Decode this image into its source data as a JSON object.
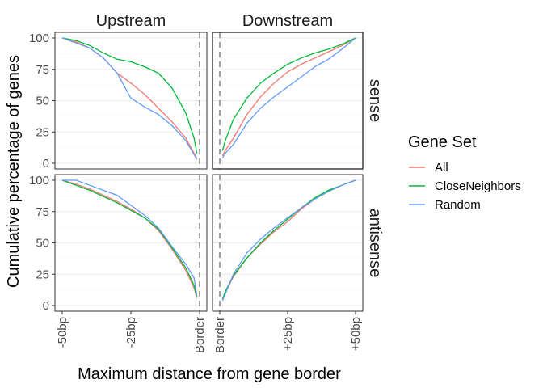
{
  "chart_data": {
    "type": "line",
    "title": "",
    "xlabel": "Maximum distance from gene border",
    "ylabel": "Cumulative percentage of genes",
    "ylim": [
      0,
      100
    ],
    "y_ticks": [
      0,
      25,
      50,
      75,
      100
    ],
    "grid": true,
    "legend": {
      "title": "Gene Set",
      "position": "right",
      "entries": [
        "All",
        "CloseNeighbors",
        "Random"
      ]
    },
    "colors": {
      "All": "#F8766D",
      "CloseNeighbors": "#00BA38",
      "Random": "#619CFF",
      "border_line": "#a0a0a0",
      "panel_border": "#333333",
      "grid": "#ebebeb"
    },
    "columns": [
      {
        "label": "Upstream",
        "x_ticks": [
          "-50bp",
          "-25bp",
          "Border"
        ],
        "xlim": [
          -50,
          0
        ]
      },
      {
        "label": "Downstream",
        "x_ticks": [
          "Border",
          "+25bp",
          "+50bp"
        ],
        "xlim": [
          0,
          50
        ]
      }
    ],
    "rows": [
      "sense",
      "antisense"
    ],
    "panels": [
      {
        "column": "Upstream",
        "row": "sense",
        "series": [
          {
            "name": "All",
            "x": [
              -50,
              -45,
              -40,
              -35,
              -30,
              -25,
              -20,
              -15,
              -10,
              -5,
              -2,
              -1
            ],
            "y": [
              100,
              97,
              92,
              84,
              72,
              64,
              55,
              44,
              33,
              20,
              8,
              4
            ]
          },
          {
            "name": "CloseNeighbors",
            "x": [
              -50,
              -45,
              -40,
              -35,
              -30,
              -25,
              -20,
              -15,
              -10,
              -5,
              -2,
              -1
            ],
            "y": [
              100,
              98,
              94,
              88,
              83,
              81,
              77,
              72,
              60,
              40,
              20,
              8
            ]
          },
          {
            "name": "Random",
            "x": [
              -50,
              -45,
              -40,
              -35,
              -30,
              -25,
              -20,
              -15,
              -10,
              -5,
              -2,
              -1
            ],
            "y": [
              100,
              96,
              92,
              84,
              72,
              52,
              45,
              39,
              30,
              18,
              7,
              3
            ]
          }
        ]
      },
      {
        "column": "Downstream",
        "row": "sense",
        "series": [
          {
            "name": "All",
            "x": [
              1,
              2,
              5,
              10,
              15,
              20,
              25,
              30,
              35,
              40,
              45,
              50
            ],
            "y": [
              6,
              10,
              20,
              39,
              53,
              64,
              73,
              79,
              84,
              89,
              94,
              100
            ]
          },
          {
            "name": "CloseNeighbors",
            "x": [
              1,
              2,
              5,
              10,
              15,
              20,
              25,
              30,
              35,
              40,
              45,
              50
            ],
            "y": [
              10,
              18,
              35,
              52,
              64,
              72,
              79,
              84,
              88,
              91,
              95,
              100
            ]
          },
          {
            "name": "Random",
            "x": [
              1,
              2,
              5,
              10,
              15,
              20,
              25,
              30,
              35,
              40,
              45,
              50
            ],
            "y": [
              4,
              8,
              15,
              32,
              44,
              53,
              61,
              69,
              77,
              83,
              91,
              100
            ]
          }
        ]
      },
      {
        "column": "Upstream",
        "row": "antisense",
        "series": [
          {
            "name": "All",
            "x": [
              -50,
              -45,
              -40,
              -35,
              -30,
              -25,
              -20,
              -15,
              -10,
              -5,
              -2,
              -1
            ],
            "y": [
              100,
              97,
              93,
              88,
              83,
              77,
              70,
              60,
              45,
              28,
              14,
              6
            ]
          },
          {
            "name": "CloseNeighbors",
            "x": [
              -50,
              -45,
              -40,
              -35,
              -30,
              -25,
              -20,
              -15,
              -10,
              -5,
              -2,
              -1
            ],
            "y": [
              100,
              96,
              92,
              87,
              82,
              76,
              70,
              61,
              46,
              30,
              16,
              7
            ]
          },
          {
            "name": "Random",
            "x": [
              -50,
              -45,
              -40,
              -35,
              -30,
              -25,
              -20,
              -15,
              -10,
              -5,
              -2,
              -1
            ],
            "y": [
              100,
              100,
              96,
              92,
              88,
              80,
              72,
              62,
              47,
              33,
              22,
              8
            ]
          }
        ]
      },
      {
        "column": "Downstream",
        "row": "antisense",
        "series": [
          {
            "name": "All",
            "x": [
              1,
              2,
              5,
              10,
              15,
              20,
              25,
              30,
              35,
              40,
              45,
              50
            ],
            "y": [
              4,
              10,
              23,
              38,
              49,
              59,
              67,
              77,
              85,
              91,
              96,
              100
            ]
          },
          {
            "name": "CloseNeighbors",
            "x": [
              1,
              2,
              5,
              10,
              15,
              20,
              25,
              30,
              35,
              40,
              45,
              50
            ],
            "y": [
              5,
              11,
              24,
              38,
              50,
              60,
              69,
              78,
              86,
              92,
              96,
              100
            ]
          },
          {
            "name": "Random",
            "x": [
              1,
              2,
              5,
              10,
              15,
              20,
              25,
              30,
              35,
              40,
              45,
              50
            ],
            "y": [
              4,
              9,
              25,
              42,
              53,
              62,
              70,
              78,
              85,
              91,
              96,
              100
            ]
          }
        ]
      }
    ]
  }
}
